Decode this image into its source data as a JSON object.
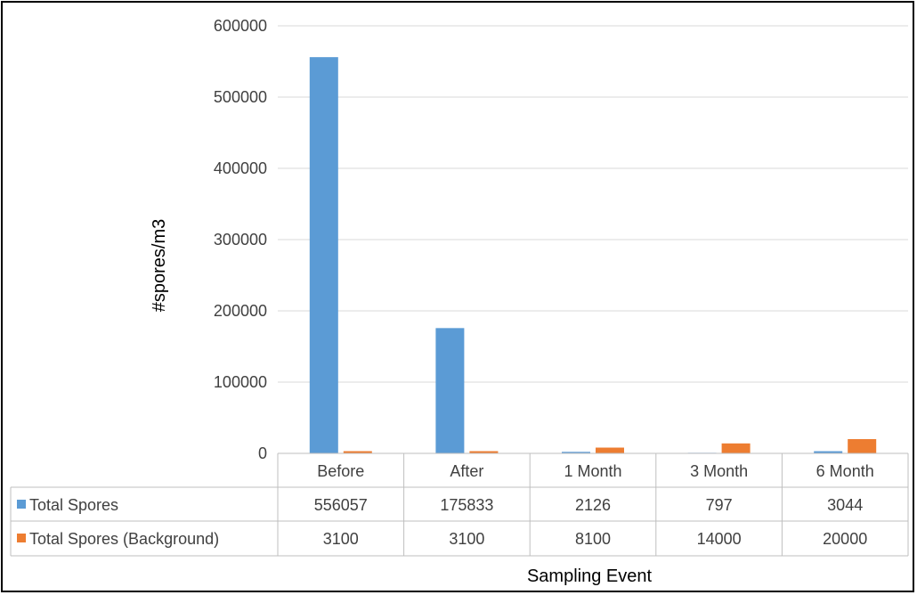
{
  "chart_data": {
    "type": "bar",
    "xlabel": "Sampling Event",
    "ylabel": "#spores/m3",
    "ylim": [
      0,
      600000
    ],
    "yticks": [
      0,
      100000,
      200000,
      300000,
      400000,
      500000,
      600000
    ],
    "grid": true,
    "legend": "data-table",
    "categories": [
      "Before",
      "After",
      "1 Month",
      "3 Month",
      "6 Month"
    ],
    "series": [
      {
        "name": "Total Spores",
        "color": "#5b9bd5",
        "values": [
          556057,
          175833,
          2126,
          797,
          3044
        ]
      },
      {
        "name": "Total Spores (Background)",
        "color": "#ed7d31",
        "values": [
          3100,
          3100,
          8100,
          14000,
          20000
        ]
      }
    ]
  }
}
